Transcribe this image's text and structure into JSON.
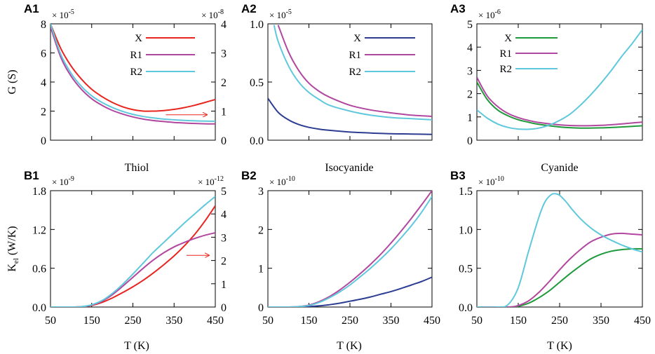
{
  "colors": {
    "X_thiol": "#e8251f",
    "X_iso": "#2d3d92",
    "X_cyan": "#1f9a3b",
    "R1": "#b2479f",
    "R2": "#5fc8dc"
  },
  "labels": {
    "g_ylabel": "G (S)",
    "k_ylabel_main": "K",
    "k_ylabel_sub": "el",
    "k_ylabel_unit": " (W/K)",
    "xlabel": "T (K)",
    "times10": "× 10",
    "titles": {
      "b1": "Thiol",
      "b2": "Isocyanide",
      "b3": "Cyanide"
    }
  },
  "chart_data": [
    {
      "id": "A1",
      "type": "line",
      "panel_label": "A1",
      "xlabel": "",
      "ylabel": "G (S)",
      "xlim": [
        50,
        450
      ],
      "ylim": [
        0,
        8
      ],
      "yticks": [
        "0",
        "2",
        "4",
        "6",
        "8"
      ],
      "y_exponent": "-5",
      "y2lim": [
        0,
        4
      ],
      "y2ticks": [
        "0",
        "1",
        "2",
        "3",
        "4"
      ],
      "y2_exponent": "-8",
      "legend": [
        "X",
        "R1",
        "R2"
      ],
      "legend_position": "top-right",
      "series": [
        {
          "name": "X",
          "color_key": "X_thiol",
          "axis": "right",
          "x": [
            50,
            75,
            100,
            125,
            150,
            175,
            200,
            225,
            250,
            275,
            300,
            325,
            350,
            375,
            400,
            425,
            450
          ],
          "y": [
            4.0,
            3.15,
            2.55,
            2.1,
            1.75,
            1.5,
            1.3,
            1.15,
            1.05,
            1.0,
            1.0,
            1.02,
            1.06,
            1.12,
            1.2,
            1.3,
            1.4
          ]
        },
        {
          "name": "R1",
          "color_key": "R1",
          "axis": "left",
          "x": [
            50,
            75,
            100,
            125,
            150,
            175,
            200,
            225,
            250,
            275,
            300,
            325,
            350,
            375,
            400,
            425,
            450
          ],
          "y": [
            7.8,
            5.7,
            4.4,
            3.5,
            2.85,
            2.4,
            2.05,
            1.8,
            1.6,
            1.45,
            1.35,
            1.28,
            1.22,
            1.18,
            1.15,
            1.13,
            1.12
          ]
        },
        {
          "name": "R2",
          "color_key": "R2",
          "axis": "left",
          "x": [
            50,
            75,
            100,
            125,
            150,
            175,
            200,
            225,
            250,
            275,
            300,
            325,
            350,
            375,
            400,
            425,
            450
          ],
          "y": [
            8.0,
            5.9,
            4.6,
            3.7,
            3.05,
            2.6,
            2.25,
            1.98,
            1.78,
            1.63,
            1.53,
            1.45,
            1.4,
            1.36,
            1.33,
            1.31,
            1.3
          ]
        }
      ],
      "annotation_arrow": {
        "from": [
          330,
          1.75
        ],
        "to": [
          430,
          1.75
        ]
      }
    },
    {
      "id": "A2",
      "type": "line",
      "panel_label": "A2",
      "xlim": [
        50,
        450
      ],
      "ylim": [
        0,
        1.0
      ],
      "yticks": [
        "0.0",
        "0.5",
        "1.0"
      ],
      "y_exponent": "-5",
      "legend": [
        "X",
        "R1",
        "R2"
      ],
      "legend_position": "top-right",
      "series": [
        {
          "name": "X",
          "color_key": "X_iso",
          "x": [
            50,
            75,
            100,
            125,
            150,
            175,
            200,
            250,
            300,
            350,
            400,
            450
          ],
          "y": [
            0.36,
            0.24,
            0.175,
            0.135,
            0.11,
            0.095,
            0.085,
            0.07,
            0.062,
            0.056,
            0.053,
            0.05
          ]
        },
        {
          "name": "R1",
          "color_key": "R1",
          "x": [
            75,
            100,
            125,
            150,
            175,
            200,
            250,
            300,
            350,
            400,
            450
          ],
          "y": [
            0.99,
            0.76,
            0.6,
            0.49,
            0.42,
            0.37,
            0.3,
            0.26,
            0.235,
            0.215,
            0.205
          ]
        },
        {
          "name": "R2",
          "color_key": "R2",
          "x": [
            65,
            75,
            100,
            125,
            150,
            175,
            200,
            250,
            300,
            350,
            400,
            450
          ],
          "y": [
            0.99,
            0.85,
            0.64,
            0.5,
            0.41,
            0.35,
            0.3,
            0.25,
            0.215,
            0.195,
            0.185,
            0.175
          ]
        }
      ]
    },
    {
      "id": "A3",
      "type": "line",
      "panel_label": "A3",
      "xlim": [
        50,
        450
      ],
      "ylim": [
        0,
        5
      ],
      "yticks": [
        "0",
        "1",
        "2",
        "3",
        "4",
        "5"
      ],
      "y_exponent": "-6",
      "legend": [
        "X",
        "R1",
        "R2"
      ],
      "legend_position": "top-left",
      "series": [
        {
          "name": "X",
          "color_key": "X_cyan",
          "x": [
            50,
            75,
            100,
            125,
            150,
            175,
            200,
            250,
            300,
            350,
            400,
            450
          ],
          "y": [
            2.5,
            1.75,
            1.3,
            1.05,
            0.88,
            0.77,
            0.68,
            0.57,
            0.52,
            0.53,
            0.57,
            0.62
          ]
        },
        {
          "name": "R1",
          "color_key": "R1",
          "x": [
            50,
            75,
            100,
            125,
            150,
            175,
            200,
            250,
            300,
            350,
            400,
            450
          ],
          "y": [
            2.7,
            1.9,
            1.45,
            1.15,
            0.97,
            0.85,
            0.76,
            0.66,
            0.62,
            0.64,
            0.7,
            0.78
          ]
        },
        {
          "name": "R2",
          "color_key": "R2",
          "x": [
            50,
            75,
            100,
            125,
            150,
            175,
            200,
            225,
            250,
            275,
            300,
            325,
            350,
            375,
            400,
            425,
            450
          ],
          "y": [
            1.3,
            0.95,
            0.7,
            0.55,
            0.48,
            0.47,
            0.52,
            0.65,
            0.85,
            1.12,
            1.5,
            1.95,
            2.45,
            3.0,
            3.6,
            4.15,
            4.75
          ]
        }
      ]
    },
    {
      "id": "B1",
      "type": "line",
      "panel_label": "B1",
      "title": "Thiol",
      "xlabel": "T (K)",
      "ylabel": "K_el (W/K)",
      "xlim": [
        50,
        450
      ],
      "xticks": [
        "50",
        "150",
        "250",
        "350",
        "450"
      ],
      "ylim": [
        0,
        1.8
      ],
      "yticks": [
        "0.0",
        "0.6",
        "1.2",
        "1.8"
      ],
      "y_exponent": "-9",
      "y2lim": [
        0,
        5
      ],
      "y2ticks": [
        "0",
        "1",
        "2",
        "3",
        "4",
        "5"
      ],
      "y2_exponent": "-12",
      "series": [
        {
          "name": "X",
          "color_key": "X_thiol",
          "axis": "right",
          "x": [
            50,
            100,
            125,
            150,
            175,
            200,
            225,
            250,
            275,
            300,
            325,
            350,
            375,
            400,
            425,
            450
          ],
          "y": [
            0,
            0,
            0.01,
            0.07,
            0.2,
            0.39,
            0.62,
            0.87,
            1.15,
            1.47,
            1.82,
            2.2,
            2.63,
            3.12,
            3.7,
            4.35
          ]
        },
        {
          "name": "R1",
          "color_key": "R1",
          "axis": "left",
          "x": [
            50,
            100,
            125,
            150,
            175,
            200,
            225,
            250,
            275,
            300,
            325,
            350,
            375,
            400,
            425,
            450
          ],
          "y": [
            0,
            0,
            0.005,
            0.03,
            0.09,
            0.19,
            0.32,
            0.46,
            0.6,
            0.73,
            0.84,
            0.93,
            1.0,
            1.06,
            1.11,
            1.15
          ]
        },
        {
          "name": "R2",
          "color_key": "R2",
          "axis": "left",
          "x": [
            50,
            100,
            125,
            150,
            175,
            200,
            225,
            250,
            275,
            300,
            325,
            350,
            375,
            400,
            425,
            450
          ],
          "y": [
            0,
            0,
            0.005,
            0.035,
            0.1,
            0.21,
            0.35,
            0.51,
            0.68,
            0.85,
            1.0,
            1.15,
            1.3,
            1.44,
            1.58,
            1.71
          ]
        }
      ],
      "annotation_arrow": {
        "from": [
          380,
          0.8
        ],
        "to": [
          435,
          0.8
        ]
      }
    },
    {
      "id": "B2",
      "type": "line",
      "panel_label": "B2",
      "title": "Isocyanide",
      "xlabel": "T (K)",
      "xlim": [
        50,
        450
      ],
      "xticks": [
        "50",
        "150",
        "250",
        "350",
        "450"
      ],
      "ylim": [
        0,
        3
      ],
      "yticks": [
        "0",
        "1",
        "2",
        "3"
      ],
      "y_exponent": "-10",
      "series": [
        {
          "name": "X",
          "color_key": "X_iso",
          "x": [
            50,
            125,
            150,
            175,
            200,
            225,
            250,
            275,
            300,
            325,
            350,
            375,
            400,
            425,
            450
          ],
          "y": [
            0,
            0,
            0.01,
            0.03,
            0.06,
            0.1,
            0.15,
            0.2,
            0.26,
            0.33,
            0.4,
            0.48,
            0.57,
            0.66,
            0.77
          ]
        },
        {
          "name": "R1",
          "color_key": "R1",
          "x": [
            50,
            100,
            125,
            150,
            175,
            200,
            225,
            250,
            275,
            300,
            325,
            350,
            375,
            400,
            425,
            450
          ],
          "y": [
            0,
            0,
            0.01,
            0.05,
            0.14,
            0.27,
            0.44,
            0.64,
            0.86,
            1.1,
            1.36,
            1.65,
            1.96,
            2.29,
            2.64,
            3.0
          ]
        },
        {
          "name": "R2",
          "color_key": "R2",
          "x": [
            50,
            100,
            125,
            150,
            175,
            200,
            225,
            250,
            275,
            300,
            325,
            350,
            375,
            400,
            425,
            450
          ],
          "y": [
            0,
            0,
            0.01,
            0.04,
            0.12,
            0.24,
            0.39,
            0.57,
            0.78,
            1.0,
            1.24,
            1.5,
            1.79,
            2.1,
            2.45,
            2.85
          ]
        }
      ]
    },
    {
      "id": "B3",
      "type": "line",
      "panel_label": "B3",
      "title": "Cyanide",
      "xlabel": "T (K)",
      "xlim": [
        50,
        450
      ],
      "xticks": [
        "50",
        "150",
        "250",
        "350",
        "450"
      ],
      "ylim": [
        0,
        1.5
      ],
      "yticks": [
        "0.0",
        "0.5",
        "1.0",
        "1.5"
      ],
      "y_exponent": "-10",
      "series": [
        {
          "name": "X",
          "color_key": "X_cyan",
          "x": [
            50,
            125,
            150,
            175,
            200,
            225,
            250,
            275,
            300,
            325,
            350,
            375,
            400,
            425,
            450
          ],
          "y": [
            0,
            0,
            0.01,
            0.05,
            0.12,
            0.21,
            0.32,
            0.43,
            0.53,
            0.62,
            0.68,
            0.72,
            0.74,
            0.75,
            0.75
          ]
        },
        {
          "name": "R1",
          "color_key": "R1",
          "x": [
            50,
            125,
            150,
            175,
            200,
            225,
            250,
            275,
            300,
            325,
            350,
            375,
            400,
            425,
            450
          ],
          "y": [
            0,
            0,
            0.02,
            0.08,
            0.19,
            0.33,
            0.48,
            0.62,
            0.74,
            0.84,
            0.9,
            0.94,
            0.95,
            0.94,
            0.93
          ]
        },
        {
          "name": "R2",
          "color_key": "R2",
          "x": [
            50,
            100,
            125,
            150,
            175,
            200,
            215,
            230,
            240,
            250,
            265,
            280,
            300,
            325,
            350,
            375,
            400,
            425,
            450
          ],
          "y": [
            0,
            0,
            0.03,
            0.25,
            0.72,
            1.16,
            1.36,
            1.45,
            1.46,
            1.44,
            1.36,
            1.26,
            1.14,
            1.02,
            0.93,
            0.86,
            0.8,
            0.75,
            0.71
          ]
        }
      ]
    }
  ]
}
